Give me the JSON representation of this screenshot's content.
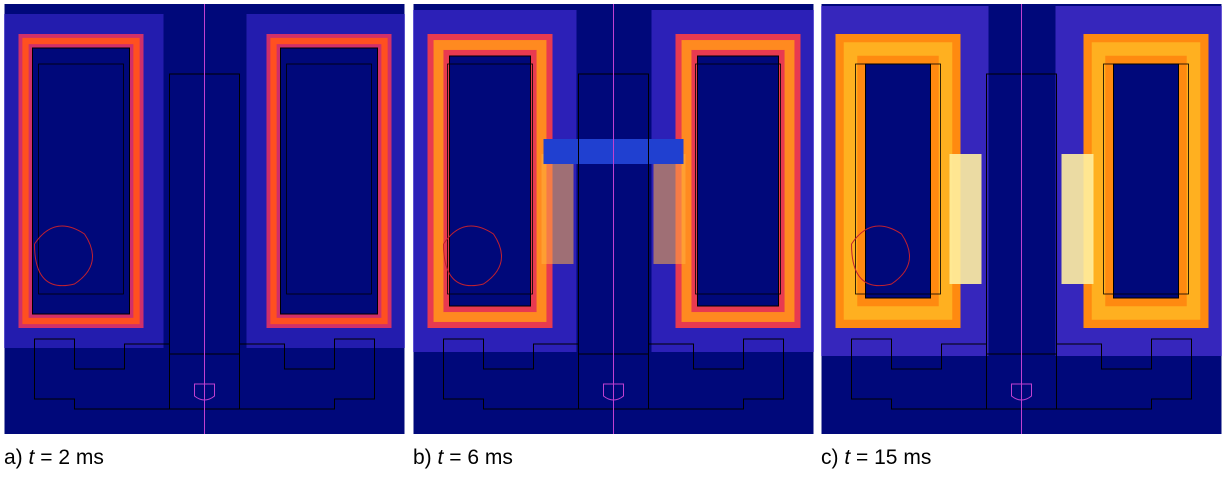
{
  "panels": [
    {
      "label": "a)",
      "variable": "t",
      "value": "= 2 ms"
    },
    {
      "label": "b)",
      "variable": "t",
      "value": "= 6 ms"
    },
    {
      "label": "c)",
      "variable": "t",
      "value": "= 15 ms"
    }
  ]
}
